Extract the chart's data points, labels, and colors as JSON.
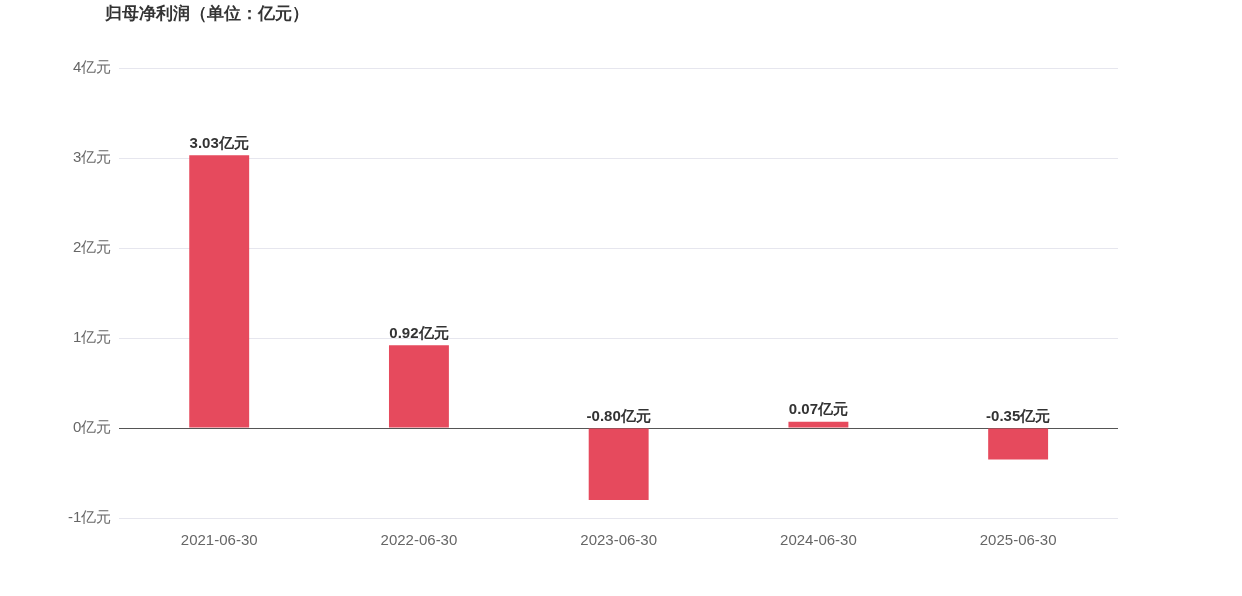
{
  "chart_data": {
    "type": "bar",
    "title": "归母净利润（单位：亿元）",
    "categories": [
      "2021-06-30",
      "2022-06-30",
      "2023-06-30",
      "2024-06-30",
      "2025-06-30"
    ],
    "values": [
      3.03,
      0.92,
      -0.8,
      0.07,
      -0.35
    ],
    "value_labels": [
      "3.03亿元",
      "0.92亿元",
      "-0.80亿元",
      "0.07亿元",
      "-0.35亿元"
    ],
    "color": "#e64a5d",
    "ylim": [
      -1,
      4
    ],
    "yticks": [
      {
        "value": -1,
        "label": "-1亿元"
      },
      {
        "value": 0,
        "label": "0亿元"
      },
      {
        "value": 1,
        "label": "1亿元"
      },
      {
        "value": 2,
        "label": "2亿元"
      },
      {
        "value": 3,
        "label": "3亿元"
      },
      {
        "value": 4,
        "label": "4亿元"
      }
    ],
    "grid": "y",
    "legend": false
  }
}
